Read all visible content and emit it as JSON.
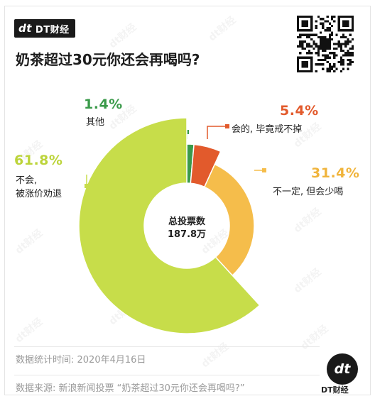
{
  "brand": {
    "mark": "dt",
    "name": "DT财经"
  },
  "title": "奶茶超过30元你还会再喝吗?",
  "watermark_text": "dt财经",
  "center": {
    "line1": "总投票数",
    "line2": "187.8万"
  },
  "footer": {
    "date": "数据统计时间: 2020年4月16日",
    "source": "数据来源: 新浪新闻投票 “奶茶超过30元你还会再喝吗?”"
  },
  "logo": {
    "mark": "dt",
    "text": "DT财经"
  },
  "chart_data": {
    "type": "pie",
    "title": "奶茶超过30元你还会再喝吗?",
    "total": "187.8万",
    "series": [
      {
        "name": "其他",
        "value": 1.4,
        "label": "1.4%",
        "color": "#3a9a4a"
      },
      {
        "name": "会的, 毕竟戒不掉",
        "value": 5.4,
        "label": "5.4%",
        "color": "#e25a2c"
      },
      {
        "name": "不一定, 但会少喝",
        "value": 31.4,
        "label": "31.4%",
        "color": "#f5bd4b"
      },
      {
        "name": "不会, 被涨价劝退",
        "value": 61.8,
        "label": "61.8%",
        "color": "#c7dd4a"
      }
    ]
  }
}
